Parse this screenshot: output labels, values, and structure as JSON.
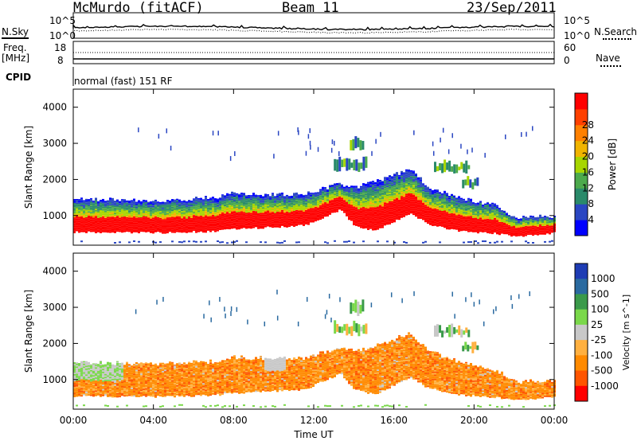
{
  "header": {
    "station": "McMurdo (fitACF)",
    "beam": "Beam 11",
    "date": "23/Sep/2011"
  },
  "top_panels": {
    "nsky_label": "N.Sky",
    "nsearch_label": "N.Search",
    "noise_ticks": [
      "10^5",
      "10^0"
    ],
    "freq_label_1": "Freq.",
    "freq_label_2": "[MHz]",
    "freq_ticks": [
      "18",
      "8"
    ],
    "nave_label": "Nave",
    "nave_ticks": [
      "60",
      "0"
    ],
    "cpid_label": "CPID",
    "cpid_text": "normal (fast) 151 RF"
  },
  "colors": {
    "power": [
      "#0000ff",
      "#2a46c2",
      "#2a8a6a",
      "#4caa4c",
      "#a7d600",
      "#f0b400",
      "#ff8000",
      "#ff4000",
      "#ff0000"
    ],
    "velocity": [
      "#ff0000",
      "#ff5500",
      "#ff8a00",
      "#ffb040",
      "#c8c8c8",
      "#7ad84a",
      "#3a9a4a",
      "#2a6aa0",
      "#1e3cb4"
    ]
  },
  "chart_data": [
    {
      "type": "heatmap",
      "title": "",
      "xlabel": "Time UT",
      "ylabel": "Slant Range [km]",
      "colorbar_label": "Power [dB]",
      "colorbar_ticks": [
        "4",
        "8",
        "12",
        "16",
        "20",
        "24",
        "28"
      ],
      "x_ticks": [
        "00:00",
        "04:00",
        "08:00",
        "12:00",
        "16:00",
        "20:00",
        "00:00"
      ],
      "y_ticks": [
        "1000",
        "2000",
        "3000",
        "4000"
      ],
      "xlim_hours": [
        0,
        24
      ],
      "ylim_km": [
        180,
        4500
      ],
      "band_km": [
        {
          "t": 0,
          "lo": 540,
          "hi": 1480
        },
        {
          "t": 4,
          "lo": 520,
          "hi": 1400
        },
        {
          "t": 7,
          "lo": 560,
          "hi": 1500
        },
        {
          "t": 8,
          "lo": 620,
          "hi": 1620
        },
        {
          "t": 10,
          "lo": 680,
          "hi": 1580
        },
        {
          "t": 11.5,
          "lo": 720,
          "hi": 1600
        },
        {
          "t": 13.3,
          "lo": 1160,
          "hi": 1880
        },
        {
          "t": 14,
          "lo": 720,
          "hi": 1780
        },
        {
          "t": 15,
          "lo": 580,
          "hi": 1920
        },
        {
          "t": 16.8,
          "lo": 1060,
          "hi": 2300
        },
        {
          "t": 17.6,
          "lo": 780,
          "hi": 1820
        },
        {
          "t": 19,
          "lo": 580,
          "hi": 1520
        },
        {
          "t": 21,
          "lo": 500,
          "hi": 1280
        },
        {
          "t": 22,
          "lo": 420,
          "hi": 940
        },
        {
          "t": 24,
          "lo": 520,
          "hi": 980
        }
      ]
    },
    {
      "type": "heatmap",
      "title": "",
      "xlabel": "Time UT",
      "ylabel": "Slant Range [km]",
      "colorbar_label": "Velocity [m s^-1]",
      "colorbar_ticks": [
        "1000",
        "500",
        "100",
        "25",
        "-25",
        "-100",
        "-500",
        "-1000"
      ],
      "x_ticks": [
        "00:00",
        "04:00",
        "08:00",
        "12:00",
        "16:00",
        "20:00",
        "00:00"
      ],
      "y_ticks": [
        "1000",
        "2000",
        "3000",
        "4000"
      ],
      "xlim_hours": [
        0,
        24
      ],
      "ylim_km": [
        180,
        4500
      ],
      "band_km": [
        {
          "t": 0,
          "lo": 540,
          "hi": 1500
        },
        {
          "t": 4,
          "lo": 520,
          "hi": 1420
        },
        {
          "t": 7,
          "lo": 560,
          "hi": 1500
        },
        {
          "t": 8,
          "lo": 620,
          "hi": 1620
        },
        {
          "t": 10,
          "lo": 680,
          "hi": 1580
        },
        {
          "t": 11.5,
          "lo": 720,
          "hi": 1600
        },
        {
          "t": 13.3,
          "lo": 1160,
          "hi": 1880
        },
        {
          "t": 14,
          "lo": 720,
          "hi": 1780
        },
        {
          "t": 15,
          "lo": 580,
          "hi": 1920
        },
        {
          "t": 16.8,
          "lo": 1060,
          "hi": 2300
        },
        {
          "t": 17.6,
          "lo": 780,
          "hi": 1820
        },
        {
          "t": 19,
          "lo": 580,
          "hi": 1520
        },
        {
          "t": 21,
          "lo": 500,
          "hi": 1280
        },
        {
          "t": 22,
          "lo": 420,
          "hi": 940
        },
        {
          "t": 24,
          "lo": 520,
          "hi": 980
        }
      ]
    }
  ]
}
